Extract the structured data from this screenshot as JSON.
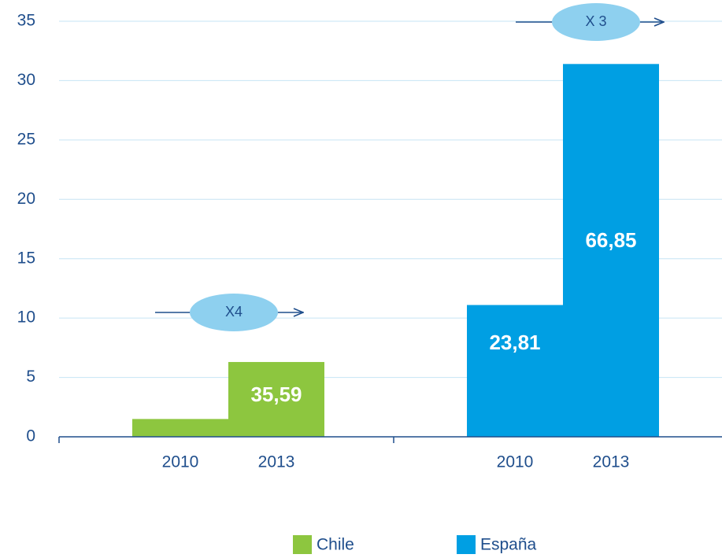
{
  "chart_data": {
    "type": "bar",
    "categories": [
      "2010",
      "2013"
    ],
    "series": [
      {
        "name": "Chile",
        "color": "#8dc63f",
        "values": [
          1.5,
          6.3
        ]
      },
      {
        "name": "España",
        "color": "#009fe3",
        "values": [
          11.1,
          31.4
        ]
      }
    ],
    "annotations": [
      "X4",
      "X 3",
      "35,59",
      "23,81",
      "66,85"
    ],
    "ylim": [
      0,
      35
    ],
    "yticks": [
      0,
      5,
      10,
      15,
      20,
      25,
      30,
      35
    ],
    "grid": true
  }
}
